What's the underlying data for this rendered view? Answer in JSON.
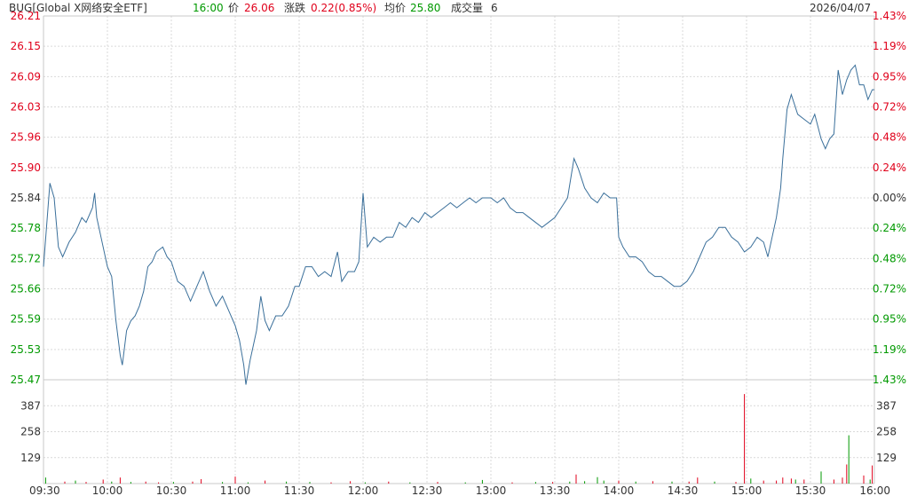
{
  "header": {
    "symbol": "BUG[Global X网络安全ETF]",
    "time": "16:00",
    "price_label": "价",
    "price": "26.06",
    "change_label": "涨跌",
    "change": "0.22(0.85%)",
    "avg_label": "均价",
    "avg": "25.80",
    "volume_label": "成交量",
    "volume": "6",
    "date": "2026/04/07"
  },
  "colors": {
    "up": "#e0001b",
    "down": "#009900",
    "neutral": "#333333",
    "price_line": "#3a6f9a",
    "grid": "#c8c8c8",
    "grid_dotted": "#d9d9d9"
  },
  "chart_data": {
    "type": "line",
    "title": "BUG[Global X网络安全ETF]",
    "reference_price": 25.84,
    "price_ticks": [
      "26.21",
      "26.15",
      "26.09",
      "26.03",
      "25.96",
      "25.90",
      "25.84",
      "25.78",
      "25.72",
      "25.66",
      "25.59",
      "25.53",
      "25.47"
    ],
    "pct_ticks": [
      "1.43%",
      "1.19%",
      "0.95%",
      "0.72%",
      "0.48%",
      "0.24%",
      "0.00%",
      "0.24%",
      "0.48%",
      "0.72%",
      "0.95%",
      "1.19%",
      "1.43%"
    ],
    "volume_ticks": [
      "387",
      "258",
      "129"
    ],
    "time_ticks": [
      "09:30",
      "10:00",
      "10:30",
      "11:00",
      "11:30",
      "12:00",
      "12:30",
      "13:00",
      "13:30",
      "14:00",
      "14:30",
      "15:00",
      "15:30",
      "16:00"
    ],
    "ylim": [
      25.47,
      26.21
    ],
    "volume_max": 516,
    "price_series": [
      [
        "09:30",
        25.7
      ],
      [
        "09:33",
        25.87
      ],
      [
        "09:35",
        25.84
      ],
      [
        "09:37",
        25.74
      ],
      [
        "09:39",
        25.72
      ],
      [
        "09:42",
        25.75
      ],
      [
        "09:45",
        25.77
      ],
      [
        "09:48",
        25.8
      ],
      [
        "09:50",
        25.79
      ],
      [
        "09:53",
        25.82
      ],
      [
        "09:54",
        25.85
      ],
      [
        "09:55",
        25.8
      ],
      [
        "09:57",
        25.76
      ],
      [
        "10:00",
        25.7
      ],
      [
        "10:02",
        25.68
      ],
      [
        "10:04",
        25.59
      ],
      [
        "10:06",
        25.52
      ],
      [
        "10:07",
        25.5
      ],
      [
        "10:09",
        25.57
      ],
      [
        "10:11",
        25.59
      ],
      [
        "10:13",
        25.6
      ],
      [
        "10:15",
        25.62
      ],
      [
        "10:17",
        25.65
      ],
      [
        "10:19",
        25.7
      ],
      [
        "10:21",
        25.71
      ],
      [
        "10:23",
        25.73
      ],
      [
        "10:26",
        25.74
      ],
      [
        "10:28",
        25.72
      ],
      [
        "10:30",
        25.71
      ],
      [
        "10:33",
        25.67
      ],
      [
        "10:36",
        25.66
      ],
      [
        "10:39",
        25.63
      ],
      [
        "10:42",
        25.66
      ],
      [
        "10:45",
        25.69
      ],
      [
        "10:48",
        25.65
      ],
      [
        "10:51",
        25.62
      ],
      [
        "10:54",
        25.64
      ],
      [
        "10:57",
        25.61
      ],
      [
        "11:00",
        25.58
      ],
      [
        "11:02",
        25.55
      ],
      [
        "11:04",
        25.5
      ],
      [
        "11:05",
        25.46
      ],
      [
        "11:07",
        25.51
      ],
      [
        "11:10",
        25.57
      ],
      [
        "11:12",
        25.64
      ],
      [
        "11:14",
        25.59
      ],
      [
        "11:16",
        25.57
      ],
      [
        "11:19",
        25.6
      ],
      [
        "11:22",
        25.6
      ],
      [
        "11:25",
        25.62
      ],
      [
        "11:28",
        25.66
      ],
      [
        "11:30",
        25.66
      ],
      [
        "11:33",
        25.7
      ],
      [
        "11:36",
        25.7
      ],
      [
        "11:39",
        25.68
      ],
      [
        "11:42",
        25.69
      ],
      [
        "11:45",
        25.68
      ],
      [
        "11:48",
        25.73
      ],
      [
        "11:50",
        25.67
      ],
      [
        "11:53",
        25.69
      ],
      [
        "11:56",
        25.69
      ],
      [
        "11:58",
        25.71
      ],
      [
        "12:00",
        25.85
      ],
      [
        "12:02",
        25.74
      ],
      [
        "12:05",
        25.76
      ],
      [
        "12:08",
        25.75
      ],
      [
        "12:11",
        25.76
      ],
      [
        "12:14",
        25.76
      ],
      [
        "12:17",
        25.79
      ],
      [
        "12:20",
        25.78
      ],
      [
        "12:23",
        25.8
      ],
      [
        "12:26",
        25.79
      ],
      [
        "12:29",
        25.81
      ],
      [
        "12:32",
        25.8
      ],
      [
        "12:35",
        25.81
      ],
      [
        "12:38",
        25.82
      ],
      [
        "12:41",
        25.83
      ],
      [
        "12:44",
        25.82
      ],
      [
        "12:47",
        25.83
      ],
      [
        "12:50",
        25.84
      ],
      [
        "12:53",
        25.83
      ],
      [
        "12:56",
        25.84
      ],
      [
        "13:00",
        25.84
      ],
      [
        "13:03",
        25.83
      ],
      [
        "13:06",
        25.84
      ],
      [
        "13:09",
        25.82
      ],
      [
        "13:12",
        25.81
      ],
      [
        "13:15",
        25.81
      ],
      [
        "13:18",
        25.8
      ],
      [
        "13:21",
        25.79
      ],
      [
        "13:24",
        25.78
      ],
      [
        "13:27",
        25.79
      ],
      [
        "13:30",
        25.8
      ],
      [
        "13:33",
        25.82
      ],
      [
        "13:36",
        25.84
      ],
      [
        "13:39",
        25.92
      ],
      [
        "13:41",
        25.9
      ],
      [
        "13:44",
        25.86
      ],
      [
        "13:47",
        25.84
      ],
      [
        "13:50",
        25.83
      ],
      [
        "13:53",
        25.85
      ],
      [
        "13:56",
        25.84
      ],
      [
        "13:59",
        25.84
      ],
      [
        "14:00",
        25.76
      ],
      [
        "14:02",
        25.74
      ],
      [
        "14:05",
        25.72
      ],
      [
        "14:08",
        25.72
      ],
      [
        "14:11",
        25.71
      ],
      [
        "14:14",
        25.69
      ],
      [
        "14:17",
        25.68
      ],
      [
        "14:20",
        25.68
      ],
      [
        "14:23",
        25.67
      ],
      [
        "14:26",
        25.66
      ],
      [
        "14:29",
        25.66
      ],
      [
        "14:32",
        25.67
      ],
      [
        "14:35",
        25.69
      ],
      [
        "14:38",
        25.72
      ],
      [
        "14:41",
        25.75
      ],
      [
        "14:44",
        25.76
      ],
      [
        "14:47",
        25.78
      ],
      [
        "14:50",
        25.78
      ],
      [
        "14:53",
        25.76
      ],
      [
        "14:56",
        25.75
      ],
      [
        "14:59",
        25.73
      ],
      [
        "15:02",
        25.74
      ],
      [
        "15:05",
        25.76
      ],
      [
        "15:08",
        25.75
      ],
      [
        "15:10",
        25.72
      ],
      [
        "15:12",
        25.76
      ],
      [
        "15:14",
        25.8
      ],
      [
        "15:16",
        25.86
      ],
      [
        "15:17",
        25.92
      ],
      [
        "15:19",
        26.02
      ],
      [
        "15:21",
        26.05
      ],
      [
        "15:24",
        26.01
      ],
      [
        "15:27",
        26.0
      ],
      [
        "15:30",
        25.99
      ],
      [
        "15:32",
        26.01
      ],
      [
        "15:35",
        25.96
      ],
      [
        "15:37",
        25.94
      ],
      [
        "15:39",
        25.96
      ],
      [
        "15:41",
        25.97
      ],
      [
        "15:43",
        26.1
      ],
      [
        "15:45",
        26.05
      ],
      [
        "15:47",
        26.08
      ],
      [
        "15:49",
        26.1
      ],
      [
        "15:51",
        26.11
      ],
      [
        "15:53",
        26.07
      ],
      [
        "15:55",
        26.07
      ],
      [
        "15:57",
        26.04
      ],
      [
        "15:59",
        26.06
      ],
      [
        "16:00",
        26.06
      ]
    ],
    "volume_series": [
      [
        "09:31",
        30,
        "down"
      ],
      [
        "09:40",
        10,
        "up"
      ],
      [
        "09:45",
        15,
        "down"
      ],
      [
        "09:50",
        8,
        "up"
      ],
      [
        "09:58",
        20,
        "up"
      ],
      [
        "10:02",
        10,
        "down"
      ],
      [
        "10:06",
        30,
        "up"
      ],
      [
        "10:11",
        8,
        "down"
      ],
      [
        "10:18",
        10,
        "up"
      ],
      [
        "10:24",
        6,
        "up"
      ],
      [
        "10:31",
        8,
        "down"
      ],
      [
        "10:40",
        10,
        "up"
      ],
      [
        "10:44",
        22,
        "up"
      ],
      [
        "10:54",
        8,
        "down"
      ],
      [
        "11:00",
        35,
        "up"
      ],
      [
        "11:06",
        6,
        "down"
      ],
      [
        "11:14",
        15,
        "up"
      ],
      [
        "11:24",
        10,
        "down"
      ],
      [
        "11:35",
        8,
        "down"
      ],
      [
        "11:45",
        6,
        "up"
      ],
      [
        "11:54",
        12,
        "up"
      ],
      [
        "12:01",
        6,
        "down"
      ],
      [
        "12:12",
        10,
        "up"
      ],
      [
        "12:22",
        6,
        "down"
      ],
      [
        "12:35",
        8,
        "up"
      ],
      [
        "12:48",
        6,
        "down"
      ],
      [
        "12:56",
        18,
        "down"
      ],
      [
        "13:10",
        6,
        "up"
      ],
      [
        "13:21",
        8,
        "down"
      ],
      [
        "13:29",
        8,
        "up"
      ],
      [
        "13:37",
        10,
        "down"
      ],
      [
        "13:40",
        45,
        "up"
      ],
      [
        "13:44",
        12,
        "down"
      ],
      [
        "13:50",
        32,
        "down"
      ],
      [
        "13:53",
        15,
        "down"
      ],
      [
        "14:00",
        15,
        "up"
      ],
      [
        "14:08",
        10,
        "down"
      ],
      [
        "14:16",
        12,
        "up"
      ],
      [
        "14:25",
        10,
        "down"
      ],
      [
        "14:33",
        10,
        "up"
      ],
      [
        "14:37",
        30,
        "up"
      ],
      [
        "14:45",
        10,
        "down"
      ],
      [
        "14:55",
        8,
        "up"
      ],
      [
        "14:59",
        445,
        "up"
      ],
      [
        "15:02",
        25,
        "down"
      ],
      [
        "15:08",
        15,
        "up"
      ],
      [
        "15:14",
        15,
        "up"
      ],
      [
        "15:17",
        30,
        "up"
      ],
      [
        "15:21",
        25,
        "up"
      ],
      [
        "15:23",
        20,
        "down"
      ],
      [
        "15:27",
        20,
        "up"
      ],
      [
        "15:35",
        60,
        "down"
      ],
      [
        "15:41",
        20,
        "up"
      ],
      [
        "15:45",
        30,
        "up"
      ],
      [
        "15:47",
        95,
        "up"
      ],
      [
        "15:48",
        240,
        "down"
      ],
      [
        "15:55",
        40,
        "up"
      ],
      [
        "15:58",
        20,
        "down"
      ],
      [
        "15:59",
        90,
        "up"
      ]
    ]
  }
}
